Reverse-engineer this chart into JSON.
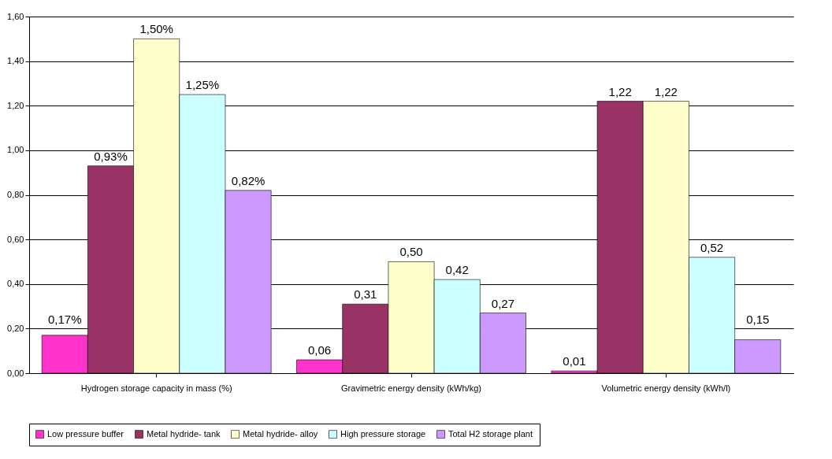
{
  "chart_data": {
    "type": "bar",
    "categories": [
      "Hydrogen storage capacity in mass (%)",
      "Gravimetric energy density (kWh/kg)",
      "Volumetric energy density (kWh/l)"
    ],
    "series": [
      {
        "name": "Low pressure buffer",
        "color": "#ff33cc",
        "values": [
          0.17,
          0.06,
          0.01
        ],
        "value_labels": [
          "0,17%",
          "0,06",
          "0,01"
        ]
      },
      {
        "name": "Metal hydride- tank",
        "color": "#993366",
        "values": [
          0.93,
          0.31,
          1.22
        ],
        "value_labels": [
          "0,93%",
          "0,31",
          "1,22"
        ]
      },
      {
        "name": "Metal hydride- alloy",
        "color": "#ffffcc",
        "values": [
          1.5,
          0.5,
          1.22
        ],
        "value_labels": [
          "1,50%",
          "0,50",
          "1,22"
        ]
      },
      {
        "name": "High pressure storage",
        "color": "#ccffff",
        "values": [
          1.25,
          0.42,
          0.52
        ],
        "value_labels": [
          "1,25%",
          "0,42",
          "0,52"
        ]
      },
      {
        "name": "Total H2 storage plant",
        "color": "#cc99ff",
        "values": [
          0.82,
          0.27,
          0.15
        ],
        "value_labels": [
          "0,82%",
          "0,27",
          "0,15"
        ]
      }
    ],
    "ylim": [
      0,
      1.6
    ],
    "yticks": [
      {
        "value": 0,
        "label": "0,00"
      },
      {
        "value": 0.2,
        "label": "0,20"
      },
      {
        "value": 0.4,
        "label": "0,40"
      },
      {
        "value": 0.6,
        "label": "0,60"
      },
      {
        "value": 0.8,
        "label": "0,80"
      },
      {
        "value": 1.0,
        "label": "1,00"
      },
      {
        "value": 1.2,
        "label": "1,20"
      },
      {
        "value": 1.4,
        "label": "1,40"
      },
      {
        "value": 1.6,
        "label": "1,60"
      }
    ],
    "grid": "y",
    "legend": "bottom"
  }
}
